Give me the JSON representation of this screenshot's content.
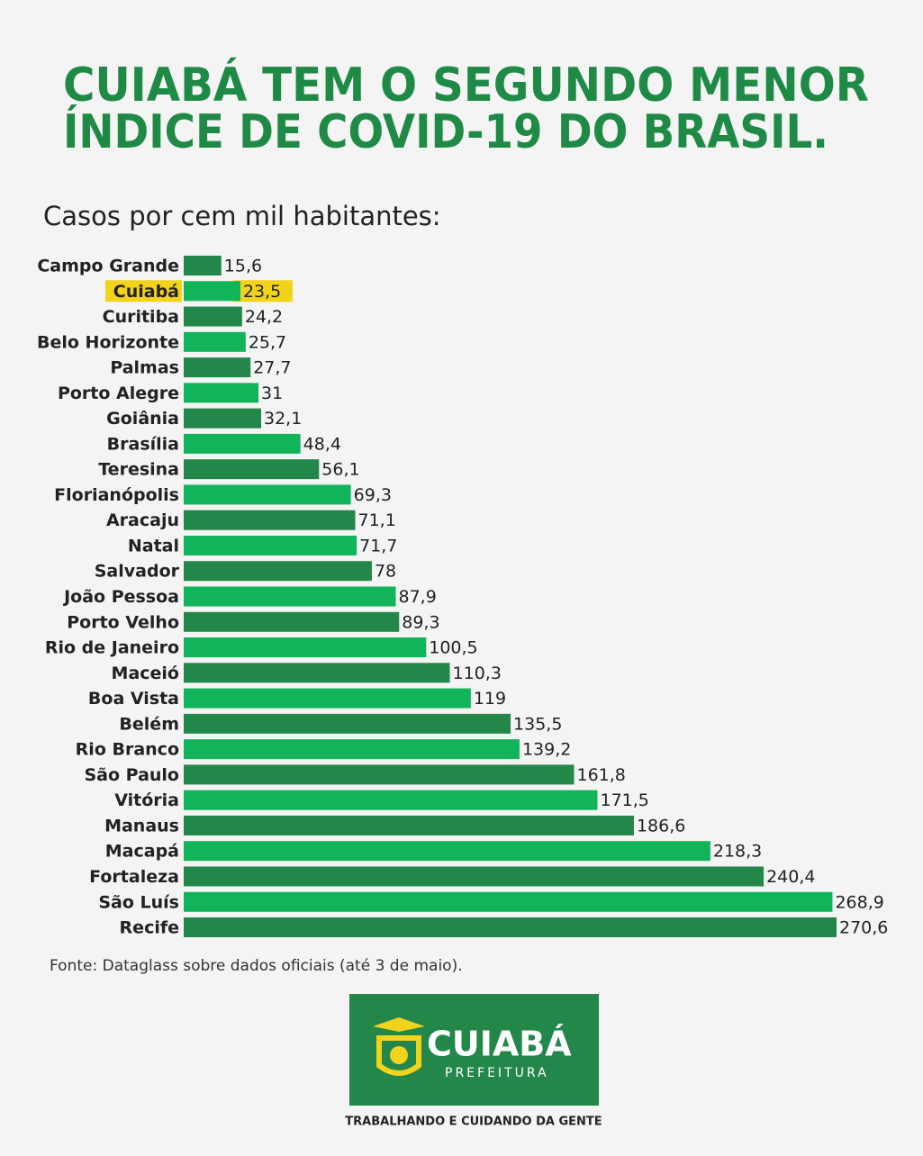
{
  "chart_data": {
    "type": "hbar",
    "title": [
      "CUIABÁ TEM O SEGUNDO MENOR",
      "ÍNDICE DE COVID-19 DO BRASIL."
    ],
    "subtitle": "Casos por cem mil habitantes:",
    "categories": [
      "Campo Grande",
      "Cuiabá",
      "Curitiba",
      "Belo Horizonte",
      "Palmas",
      "Porto Alegre",
      "Goiânia",
      "Brasília",
      "Teresina",
      "Florianópolis",
      "Aracaju",
      "Natal",
      "Salvador",
      "João Pessoa",
      "Porto Velho",
      "Rio de Janeiro",
      "Maceió",
      "Boa Vista",
      "Belém",
      "Rio Branco",
      "São Paulo",
      "Vitória",
      "Manaus",
      "Macapá",
      "Fortaleza",
      "São Luís",
      "Recife"
    ],
    "values": [
      15.6,
      23.5,
      24.2,
      25.7,
      27.7,
      31,
      32.1,
      48.4,
      56.1,
      69.3,
      71.1,
      71.7,
      78,
      87.9,
      89.3,
      100.5,
      110.3,
      119,
      135.5,
      139.2,
      161.8,
      171.5,
      186.6,
      218.3,
      240.4,
      268.9,
      270.6
    ],
    "value_labels": [
      "15,6",
      "23,5",
      "24,2",
      "25,7",
      "27,7",
      "31",
      "32,1",
      "48,4",
      "56,1",
      "69,3",
      "71,1",
      "71,7",
      "78",
      "87,9",
      "89,3",
      "100,5",
      "110,3",
      "119",
      "135,5",
      "139,2",
      "161,8",
      "171,5",
      "186,6",
      "218,3",
      "240,4",
      "268,9",
      "270,6"
    ],
    "colors": [
      "#23874a",
      "#12b45a"
    ],
    "highlight": 1,
    "highlight_color": "#f2d31b",
    "xlim": [
      0,
      270.6
    ],
    "source": "Fonte: Dataglass sobre dados oficiais (até 3 de maio)."
  },
  "logo": {
    "name": "CUIABÁ",
    "subtitle": "PREFEITURA",
    "tagline": "TRABALHANDO E CUIDANDO DA GENTE"
  }
}
